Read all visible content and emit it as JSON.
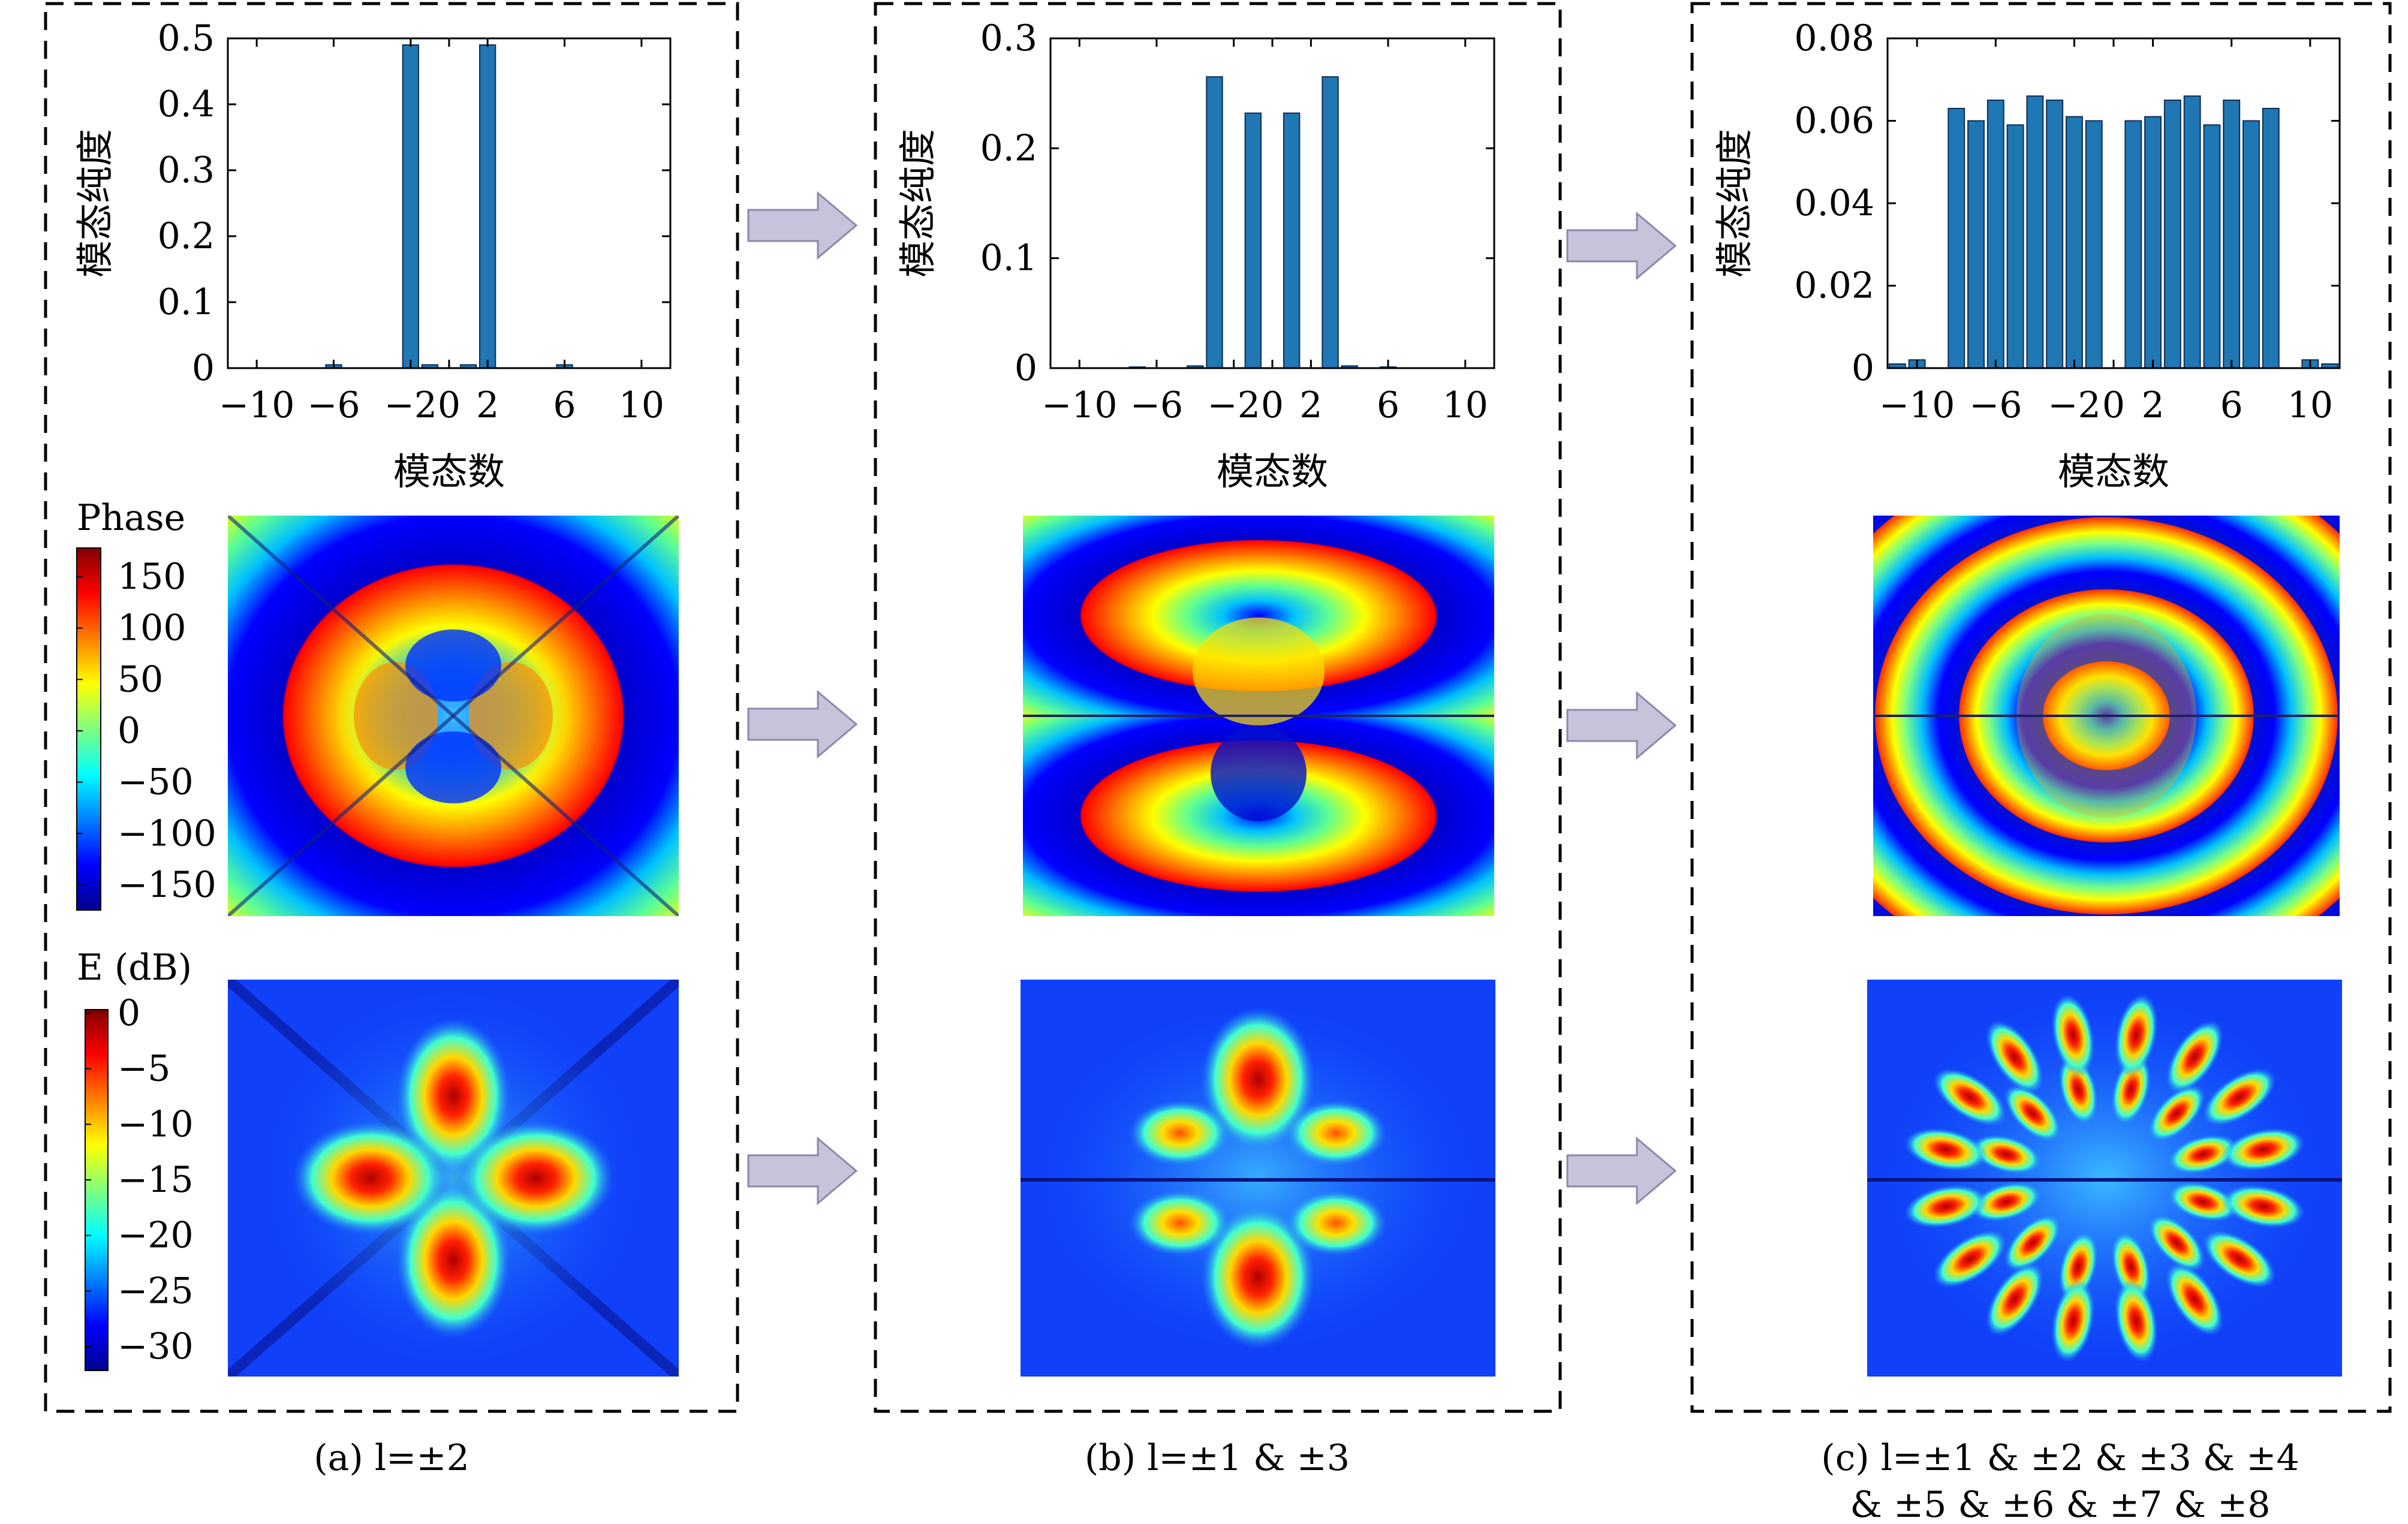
{
  "colors": {
    "bar": "#1f77b4",
    "bar_edge": "#0b2d52",
    "arrow_fill": "#c8c2da",
    "arrow_edge": "#8e86a8"
  },
  "chart_data": [
    {
      "type": "bar",
      "panel": "a",
      "xlabel": "模态数",
      "ylabel": "模态纯度",
      "xticks": [
        -10,
        -6,
        -2,
        0,
        2,
        6,
        10
      ],
      "yticks": [
        "0",
        "0.1",
        "0.2",
        "0.3",
        "0.4",
        "0.5"
      ],
      "xlim": [
        -11.5,
        11.5
      ],
      "ylim": [
        0,
        0.5
      ],
      "x": [
        -10,
        -9,
        -8,
        -7,
        -6,
        -5,
        -4,
        -3,
        -2,
        -1,
        0,
        1,
        2,
        3,
        4,
        5,
        6,
        7,
        8,
        9,
        10
      ],
      "values": [
        0,
        0,
        0,
        0,
        0.005,
        0,
        0,
        0,
        0.49,
        0.005,
        0,
        0.005,
        0.49,
        0,
        0,
        0,
        0.005,
        0,
        0,
        0,
        0
      ]
    },
    {
      "type": "bar",
      "panel": "b",
      "xlabel": "模态数",
      "ylabel": "模态纯度",
      "xticks": [
        -10,
        -6,
        -2,
        0,
        2,
        6,
        10
      ],
      "yticks": [
        "0",
        "0.1",
        "0.2",
        "0.3"
      ],
      "xlim": [
        -11.5,
        11.5
      ],
      "ylim": [
        0,
        0.3
      ],
      "x": [
        -10,
        -9,
        -8,
        -7,
        -6,
        -5,
        -4,
        -3,
        -2,
        -1,
        0,
        1,
        2,
        3,
        4,
        5,
        6,
        7,
        8,
        9,
        10
      ],
      "values": [
        0,
        0,
        0,
        0.001,
        0,
        0,
        0.002,
        0.265,
        0,
        0.232,
        0,
        0.232,
        0,
        0.265,
        0.002,
        0,
        0.001,
        0,
        0,
        0,
        0
      ]
    },
    {
      "type": "bar",
      "panel": "c",
      "xlabel": "模态数",
      "ylabel": "模态纯度",
      "xticks": [
        -10,
        -6,
        -2,
        0,
        2,
        6,
        10
      ],
      "yticks": [
        "0",
        "0.02",
        "0.04",
        "0.06",
        "0.08"
      ],
      "xlim": [
        -11.5,
        11.5
      ],
      "ylim": [
        0,
        0.08
      ],
      "x": [
        -11,
        -10,
        -9,
        -8,
        -7,
        -6,
        -5,
        -4,
        -3,
        -2,
        -1,
        0,
        1,
        2,
        3,
        4,
        5,
        6,
        7,
        8,
        9,
        10,
        11
      ],
      "values": [
        0.001,
        0.002,
        0,
        0.063,
        0.06,
        0.065,
        0.059,
        0.066,
        0.065,
        0.061,
        0.06,
        0,
        0.06,
        0.061,
        0.065,
        0.066,
        0.059,
        0.065,
        0.06,
        0.063,
        0,
        0.002,
        0.001
      ]
    }
  ],
  "phase_colorbar": {
    "title": "Phase",
    "ticks": [
      "150",
      "100",
      "50",
      "0",
      "−50",
      "−100",
      "−150"
    ]
  },
  "e_colorbar": {
    "title": "E (dB)",
    "ticks": [
      "0",
      "−5",
      "−10",
      "−15",
      "−20",
      "−25",
      "−30"
    ]
  },
  "captions": {
    "a": [
      "(a) l=±2"
    ],
    "b": [
      "(b) l=±1 & ±3"
    ],
    "c": [
      "(c) l=±1 & ±2 & ±3 & ±4",
      "& ±5 & ±6 & ±7 & ±8"
    ]
  }
}
